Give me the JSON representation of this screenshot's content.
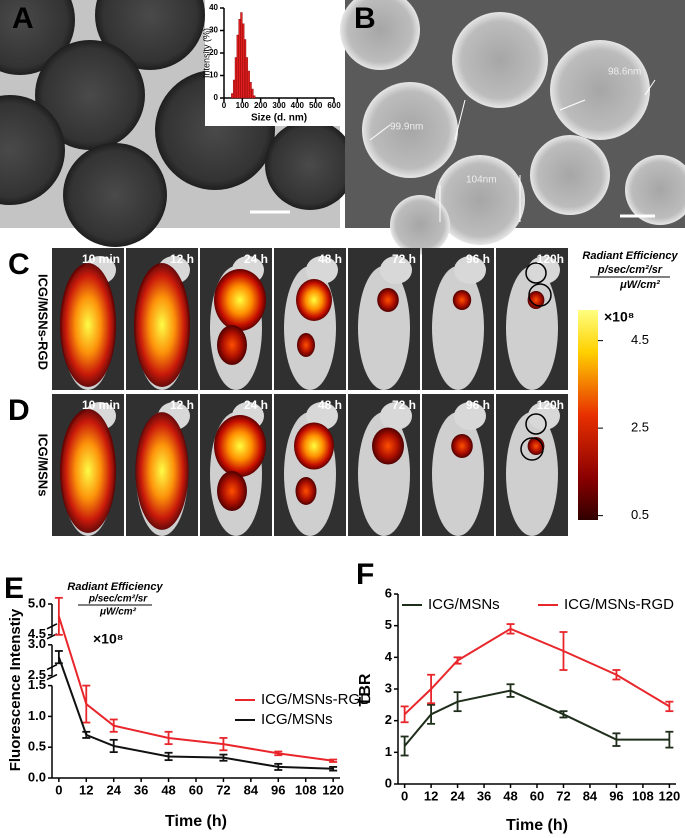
{
  "panel_labels": {
    "a": "A",
    "b": "B",
    "c": "C",
    "d": "D",
    "e": "E",
    "f": "F"
  },
  "sem_labels": [
    "99.9nm",
    "98.6nm",
    "104nm"
  ],
  "imaging": {
    "rows": [
      "ICG/MSNs-RGD",
      "ICG/MSNs"
    ],
    "times": [
      "10 min",
      "12 h",
      "24 h",
      "48 h",
      "72 h",
      "96 h",
      "120h"
    ],
    "colorbar": {
      "title": "Radiant Efficiency",
      "unit_top": "p/sec/cm²/sr",
      "unit_bottom": "μW/cm²",
      "multiplier": "×10⁸",
      "lim": [
        0.4,
        5.2
      ],
      "ticks": [
        4.5,
        2.5,
        0.5
      ]
    }
  },
  "chart_data": [
    {
      "type": "histogram",
      "ylabel": "Intensity (%)",
      "xlabel": "Size (d. nm)",
      "bins": [
        40,
        50,
        60,
        70,
        80,
        90,
        100,
        110,
        120,
        130,
        140,
        150,
        160,
        170
      ],
      "counts": [
        2,
        8,
        18,
        28,
        35,
        38,
        33,
        26,
        18,
        12,
        7,
        4,
        1
      ],
      "color": "#e02020",
      "xlim": [
        0,
        600
      ],
      "xticks": [
        0,
        100,
        200,
        300,
        400,
        500,
        600
      ],
      "ylim": [
        0,
        40
      ],
      "yticks": [
        0,
        10,
        20,
        30,
        40
      ]
    },
    {
      "type": "line",
      "xlabel": "Time (h)",
      "ylabel": "Fluorescence Intenstiy",
      "x": [
        0,
        12,
        24,
        48,
        72,
        96,
        120
      ],
      "series": [
        {
          "name": "ICG/MSNs-RGD",
          "color": "#e8262b",
          "values": [
            4.8,
            1.2,
            0.85,
            0.65,
            0.55,
            0.4,
            0.28
          ],
          "errors": [
            0.3,
            0.3,
            0.1,
            0.1,
            0.1,
            0.03,
            0.02
          ]
        },
        {
          "name": "ICG/MSNs",
          "color": "#111111",
          "values": [
            2.8,
            0.7,
            0.52,
            0.35,
            0.33,
            0.18,
            0.15
          ],
          "errors": [
            0.1,
            0.05,
            0.1,
            0.06,
            0.05,
            0.05,
            0.03
          ]
        }
      ],
      "xlim": [
        -3,
        123
      ],
      "xticks": [
        0,
        12,
        24,
        36,
        48,
        60,
        72,
        84,
        96,
        108,
        120
      ],
      "ylim": [
        0,
        5.0
      ],
      "ybreaks": [
        [
          1.5,
          2.5
        ],
        [
          3.0,
          4.5
        ]
      ],
      "yticks": [
        {
          "value": 0,
          "label": "0.0"
        },
        0.5,
        {
          "value": 1,
          "label": "1.0"
        },
        1.5,
        2.5,
        {
          "value": 3,
          "label": "3.0"
        },
        4.5,
        {
          "value": 5,
          "label": "5.0"
        }
      ],
      "annotation": {
        "title": "Radiant Efficiency",
        "unit_top": "p/sec/cm²/sr",
        "unit_bottom": "μW/cm²",
        "multiplier": "×10⁸"
      }
    },
    {
      "type": "line",
      "xlabel": "Time (h)",
      "ylabel": "TBR",
      "x": [
        0,
        12,
        24,
        48,
        72,
        96,
        120
      ],
      "series": [
        {
          "name": "ICG/MSNs",
          "color": "#1e2e1a",
          "values": [
            1.2,
            2.2,
            2.6,
            2.95,
            2.2,
            1.4,
            1.4
          ],
          "errors": [
            0.3,
            0.3,
            0.3,
            0.2,
            0.1,
            0.2,
            0.25
          ]
        },
        {
          "name": "ICG/MSNs-RGD",
          "color": "#e8262b",
          "values": [
            2.2,
            3.0,
            3.9,
            4.9,
            4.2,
            3.45,
            2.45
          ],
          "errors": [
            0.25,
            0.45,
            0.1,
            0.15,
            0.6,
            0.15,
            0.15
          ]
        }
      ],
      "xlim": [
        -3,
        123
      ],
      "xticks": [
        0,
        12,
        24,
        36,
        48,
        60,
        72,
        84,
        96,
        108,
        120
      ],
      "ylim": [
        0,
        6
      ],
      "yticks": [
        0,
        1,
        2,
        3,
        4,
        5,
        6
      ]
    }
  ]
}
